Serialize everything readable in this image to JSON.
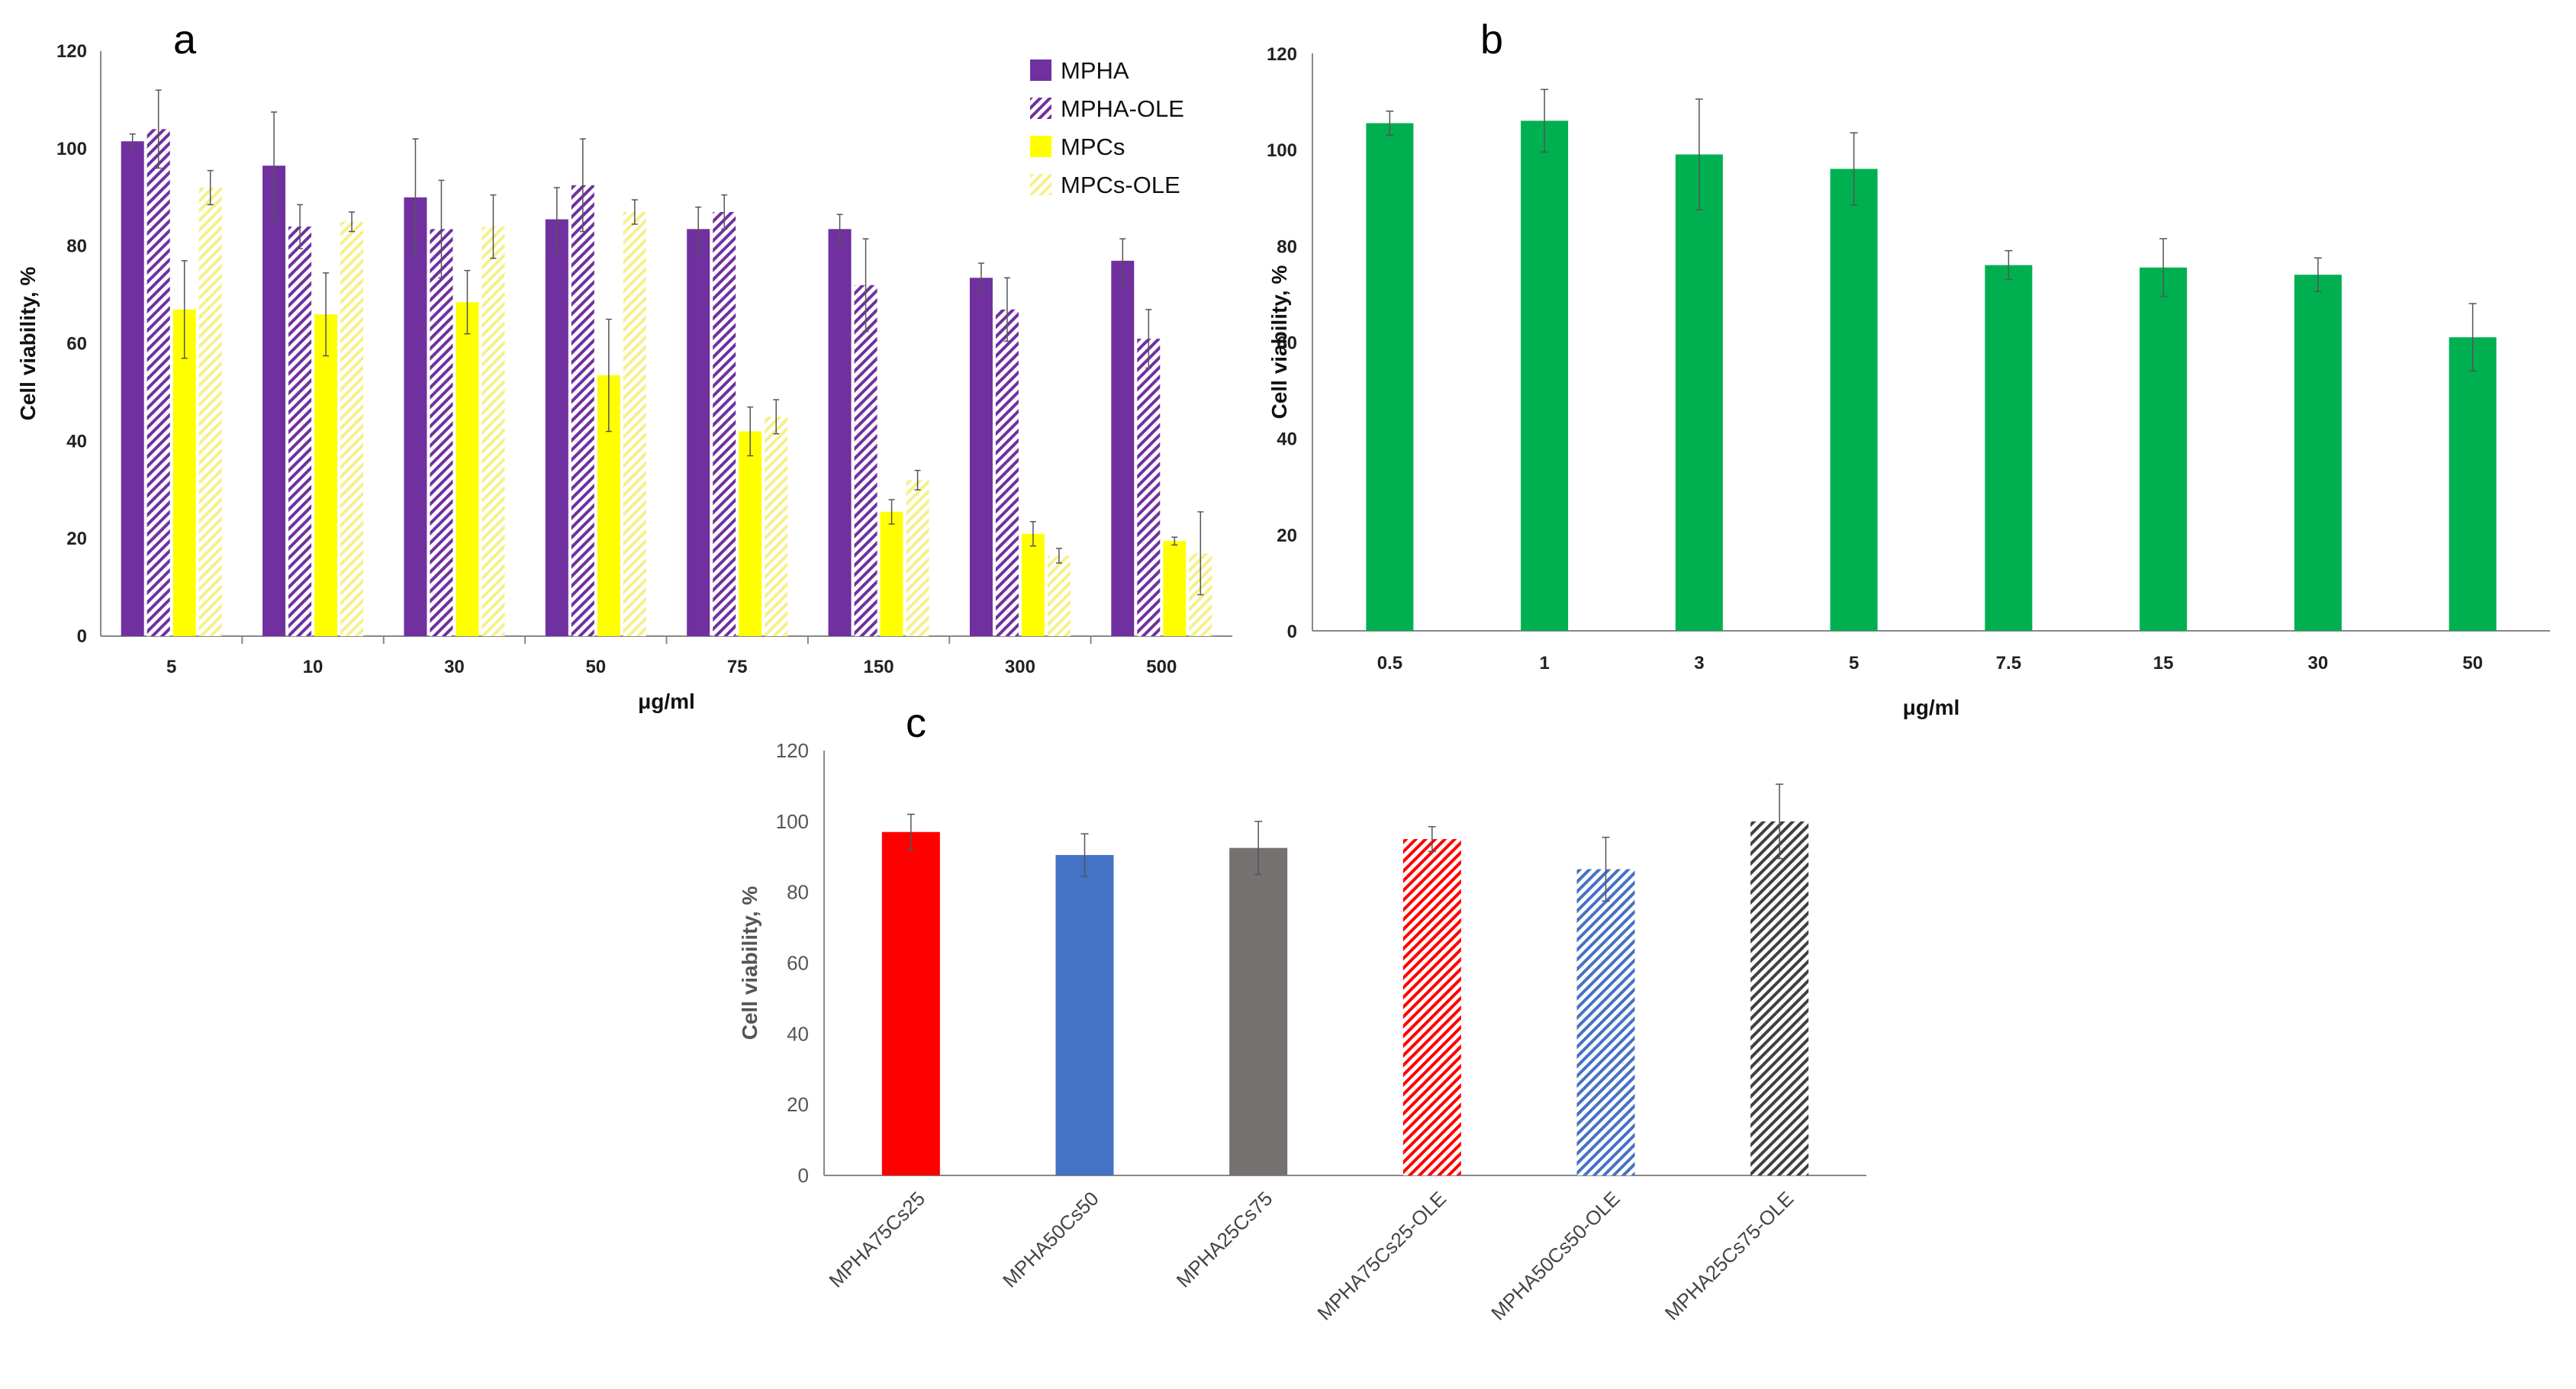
{
  "chart_data": [
    {
      "type": "bar",
      "panel_label": "a",
      "xlabel": "μg/ml",
      "ylabel": "Cell viability, %",
      "ylim": [
        0,
        120
      ],
      "yticks": [
        0,
        20,
        40,
        60,
        80,
        100,
        120
      ],
      "categories": [
        "5",
        "10",
        "30",
        "50",
        "75",
        "150",
        "300",
        "500"
      ],
      "legend_position": "top-right",
      "series": [
        {
          "name": "MPHA",
          "color": "#7030A0",
          "pattern": "solid",
          "values": [
            101.5,
            96.5,
            90,
            85.5,
            83.5,
            83.5,
            73.5,
            77
          ],
          "errors": [
            1.5,
            11,
            12,
            6.5,
            4.5,
            3,
            3,
            4.5
          ]
        },
        {
          "name": "MPHA-OLE",
          "color": "#7030A0",
          "pattern": "hatch",
          "values": [
            104,
            84,
            83.5,
            92.5,
            87,
            72,
            67,
            61
          ],
          "errors": [
            8,
            4.5,
            10,
            9.5,
            3.5,
            9.5,
            6.5,
            6
          ]
        },
        {
          "name": "MPCs",
          "color": "#FFFF00",
          "pattern": "solid",
          "values": [
            67,
            66,
            68.5,
            53.5,
            42,
            25.5,
            21,
            19.5
          ],
          "errors": [
            10,
            8.5,
            6.5,
            11.5,
            5,
            2.5,
            2.5,
            0.8
          ]
        },
        {
          "name": "MPCs-OLE",
          "color": "#FFFF00",
          "pattern": "hatch",
          "values": [
            92,
            85,
            84,
            87,
            45,
            32,
            16.5,
            17
          ],
          "errors": [
            3.5,
            2,
            6.5,
            2.5,
            3.5,
            2,
            1.5,
            8.5
          ]
        }
      ]
    },
    {
      "type": "bar",
      "panel_label": "b",
      "xlabel": "μg/ml",
      "ylabel": "Cell viability, %",
      "ylim": [
        0,
        120
      ],
      "yticks": [
        0,
        20,
        40,
        60,
        80,
        100,
        120
      ],
      "categories": [
        "0.5",
        "1",
        "3",
        "5",
        "7.5",
        "15",
        "30",
        "50"
      ],
      "series": [
        {
          "name": "",
          "color": "#00B050",
          "pattern": "solid",
          "values": [
            105.5,
            106,
            99,
            96,
            76,
            75.5,
            74,
            61
          ],
          "errors": [
            2.5,
            6.5,
            11.5,
            7.5,
            3,
            6,
            3.5,
            7
          ]
        }
      ]
    },
    {
      "type": "bar",
      "panel_label": "c",
      "xlabel": "",
      "ylabel": "Cell viability, %",
      "ylim": [
        0,
        120
      ],
      "yticks": [
        0,
        20,
        40,
        60,
        80,
        100,
        120
      ],
      "categories": [
        "MPHA75Cs25",
        "MPHA50Cs50",
        "MPHA25Cs75",
        "MPHA75Cs25-OLE",
        "MPHA50Cs50-OLE",
        "MPHA25Cs75-OLE"
      ],
      "series": [
        {
          "name": "",
          "colors": [
            "#FF0000",
            "#4472C4",
            "#767171",
            "#FF0000",
            "#4472C4",
            "#404040"
          ],
          "patterns": [
            "solid",
            "solid",
            "solid",
            "hatch",
            "hatch",
            "hatch"
          ],
          "values": [
            97,
            90.5,
            92.5,
            95,
            86.5,
            100
          ],
          "errors": [
            5,
            6,
            7.5,
            3.5,
            9,
            10.5
          ]
        }
      ]
    }
  ]
}
